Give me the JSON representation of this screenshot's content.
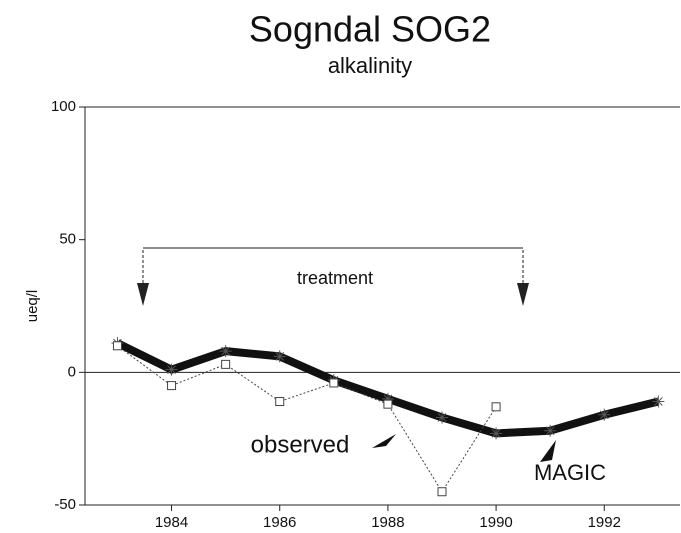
{
  "chart_data": {
    "type": "line",
    "title": "Sogndal SOG2",
    "subtitle": "alkalinity",
    "ylabel": "ueq/l",
    "annotations": [
      "treatment",
      "observed",
      "MAGIC"
    ],
    "series": [
      {
        "name": "MAGIC",
        "color": "#111111",
        "x": [
          1983,
          1984,
          1985,
          1986,
          1987,
          1988,
          1989,
          1990,
          1991,
          1992,
          1993
        ],
        "values": [
          11,
          1,
          8,
          6,
          -3,
          -10,
          -17,
          -23,
          -22,
          -16,
          -11
        ]
      },
      {
        "name": "observed",
        "color": "#444444",
        "x": [
          1983,
          1984,
          1985,
          1986,
          1987,
          1988,
          1989,
          1990
        ],
        "values": [
          10,
          -5,
          3,
          -11,
          -4,
          -12,
          -45,
          -13
        ]
      }
    ],
    "xlim": [
      1982.4,
      1993.4
    ],
    "xticks": [
      1984,
      1986,
      1988,
      1990,
      1992
    ],
    "ylim": [
      -50,
      100
    ],
    "yticks": [
      -50,
      0,
      50,
      100
    ],
    "zero_line": true
  }
}
